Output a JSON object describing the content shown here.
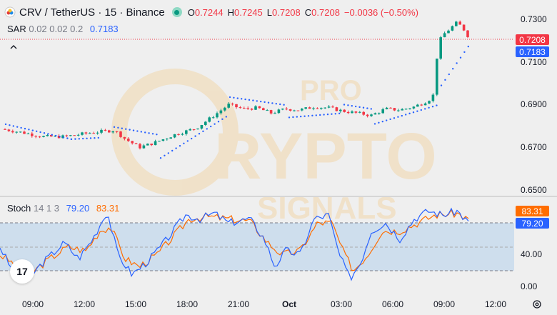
{
  "header": {
    "symbol": "CRV / TetherUS · 15 · Binance",
    "ohlc": [
      {
        "k": "O",
        "v": "0.7244"
      },
      {
        "k": "H",
        "v": "0.7245"
      },
      {
        "k": "L",
        "v": "0.7208"
      },
      {
        "k": "C",
        "v": "0.7208"
      }
    ],
    "change": "−0.0036 (−0.50%)"
  },
  "sar": {
    "name": "SAR",
    "params": "0.02 0.02 0.2",
    "value": "0.7183"
  },
  "stoch": {
    "name": "Stoch",
    "params": "14 1 3",
    "k_value": "79.20",
    "d_value": "83.31"
  },
  "price_axis": {
    "ticks": [
      "0.7300",
      "0.7100",
      "0.6900",
      "0.6700",
      "0.6500"
    ],
    "last_price": "0.7208",
    "sar_tag": "0.7183"
  },
  "stoch_axis": {
    "ticks": [
      "40.00",
      "0.00"
    ],
    "d_tag": "83.31",
    "k_tag": "79.20"
  },
  "time_axis": {
    "ticks": [
      "09:00",
      "12:00",
      "15:00",
      "18:00",
      "21:00",
      "Oct",
      "03:00",
      "06:00",
      "09:00",
      "12:00"
    ]
  },
  "watermark": {
    "line1": "PRO",
    "line2": "RYPTO",
    "line3": "SIGNALS"
  },
  "logo_text": "17",
  "colors": {
    "up": "#089981",
    "down": "#f23645",
    "sar": "#2962ff",
    "k": "#2962ff",
    "d": "#ff6d00",
    "band": "#c6d9ec"
  }
}
